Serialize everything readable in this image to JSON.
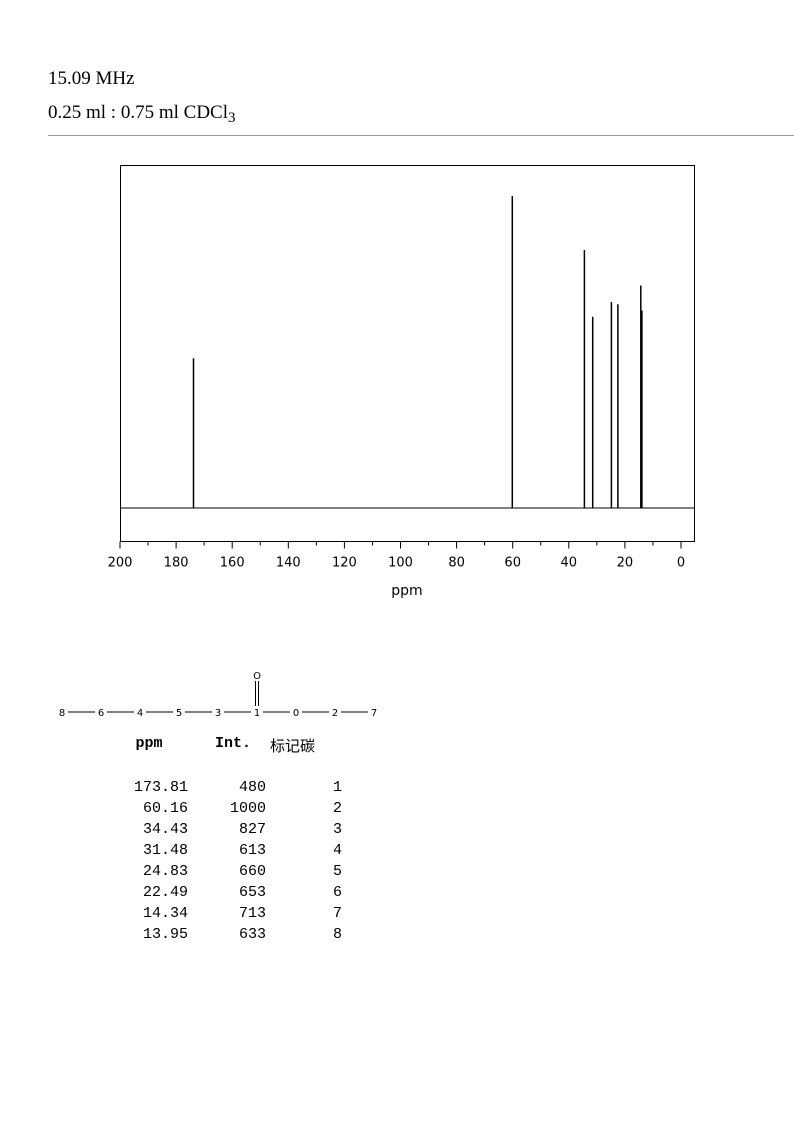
{
  "header": {
    "frequency": "15.09 MHz",
    "solvent_prefix": "0.25 ml : 0.75 ml CDCl",
    "solvent_subscript": "3"
  },
  "chart_data": {
    "type": "bar",
    "title": "",
    "xlabel": "ppm",
    "ylabel": "",
    "xlim": [
      200,
      0
    ],
    "ylim": [
      0,
      1000
    ],
    "x_ticks": [
      200,
      180,
      160,
      140,
      120,
      100,
      80,
      60,
      40,
      20,
      0
    ],
    "grid": false,
    "peaks": [
      {
        "ppm": 173.81,
        "intensity": 480
      },
      {
        "ppm": 60.16,
        "intensity": 1000
      },
      {
        "ppm": 34.43,
        "intensity": 827
      },
      {
        "ppm": 31.48,
        "intensity": 613
      },
      {
        "ppm": 24.83,
        "intensity": 660
      },
      {
        "ppm": 22.49,
        "intensity": 653
      },
      {
        "ppm": 14.34,
        "intensity": 713
      },
      {
        "ppm": 13.95,
        "intensity": 633
      }
    ]
  },
  "structure": {
    "carbonyl_oxygen": "O",
    "chain": [
      "8",
      "6",
      "4",
      "5",
      "3",
      "1",
      "0",
      "2",
      "7"
    ]
  },
  "table": {
    "headers": [
      "ppm",
      "Int.",
      "标记碳"
    ],
    "rows": [
      [
        "173.81",
        "480",
        "1"
      ],
      [
        "60.16",
        "1000",
        "2"
      ],
      [
        "34.43",
        "827",
        "3"
      ],
      [
        "31.48",
        "613",
        "4"
      ],
      [
        "24.83",
        "660",
        "5"
      ],
      [
        "22.49",
        "653",
        "6"
      ],
      [
        "14.34",
        "713",
        "7"
      ],
      [
        "13.95",
        "633",
        "8"
      ]
    ]
  }
}
